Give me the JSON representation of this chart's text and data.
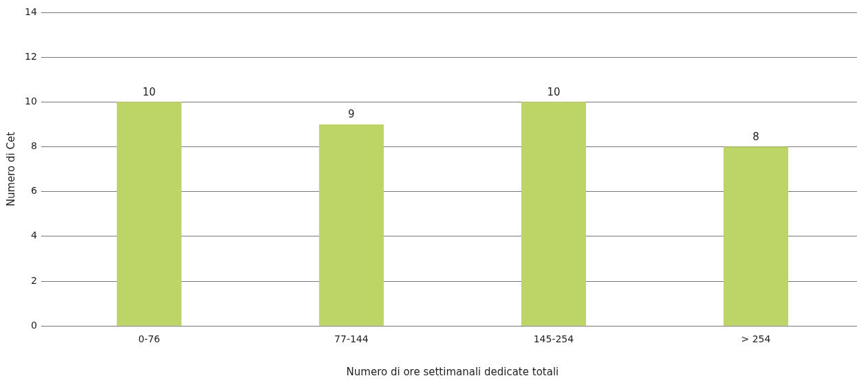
{
  "chart_data": {
    "type": "bar",
    "xlabel": "Numero di ore settimanali dedicate totali",
    "ylabel": "Numero di Cet",
    "categories": [
      "0-76",
      "77-144",
      "145-254",
      "> 254"
    ],
    "values": [
      10,
      9,
      10,
      8
    ],
    "color": "#bdd466",
    "ylim": [
      0,
      14
    ],
    "yticks": [
      0,
      2,
      4,
      6,
      8,
      10,
      12,
      14
    ],
    "grid": "y",
    "data_labels": true
  }
}
